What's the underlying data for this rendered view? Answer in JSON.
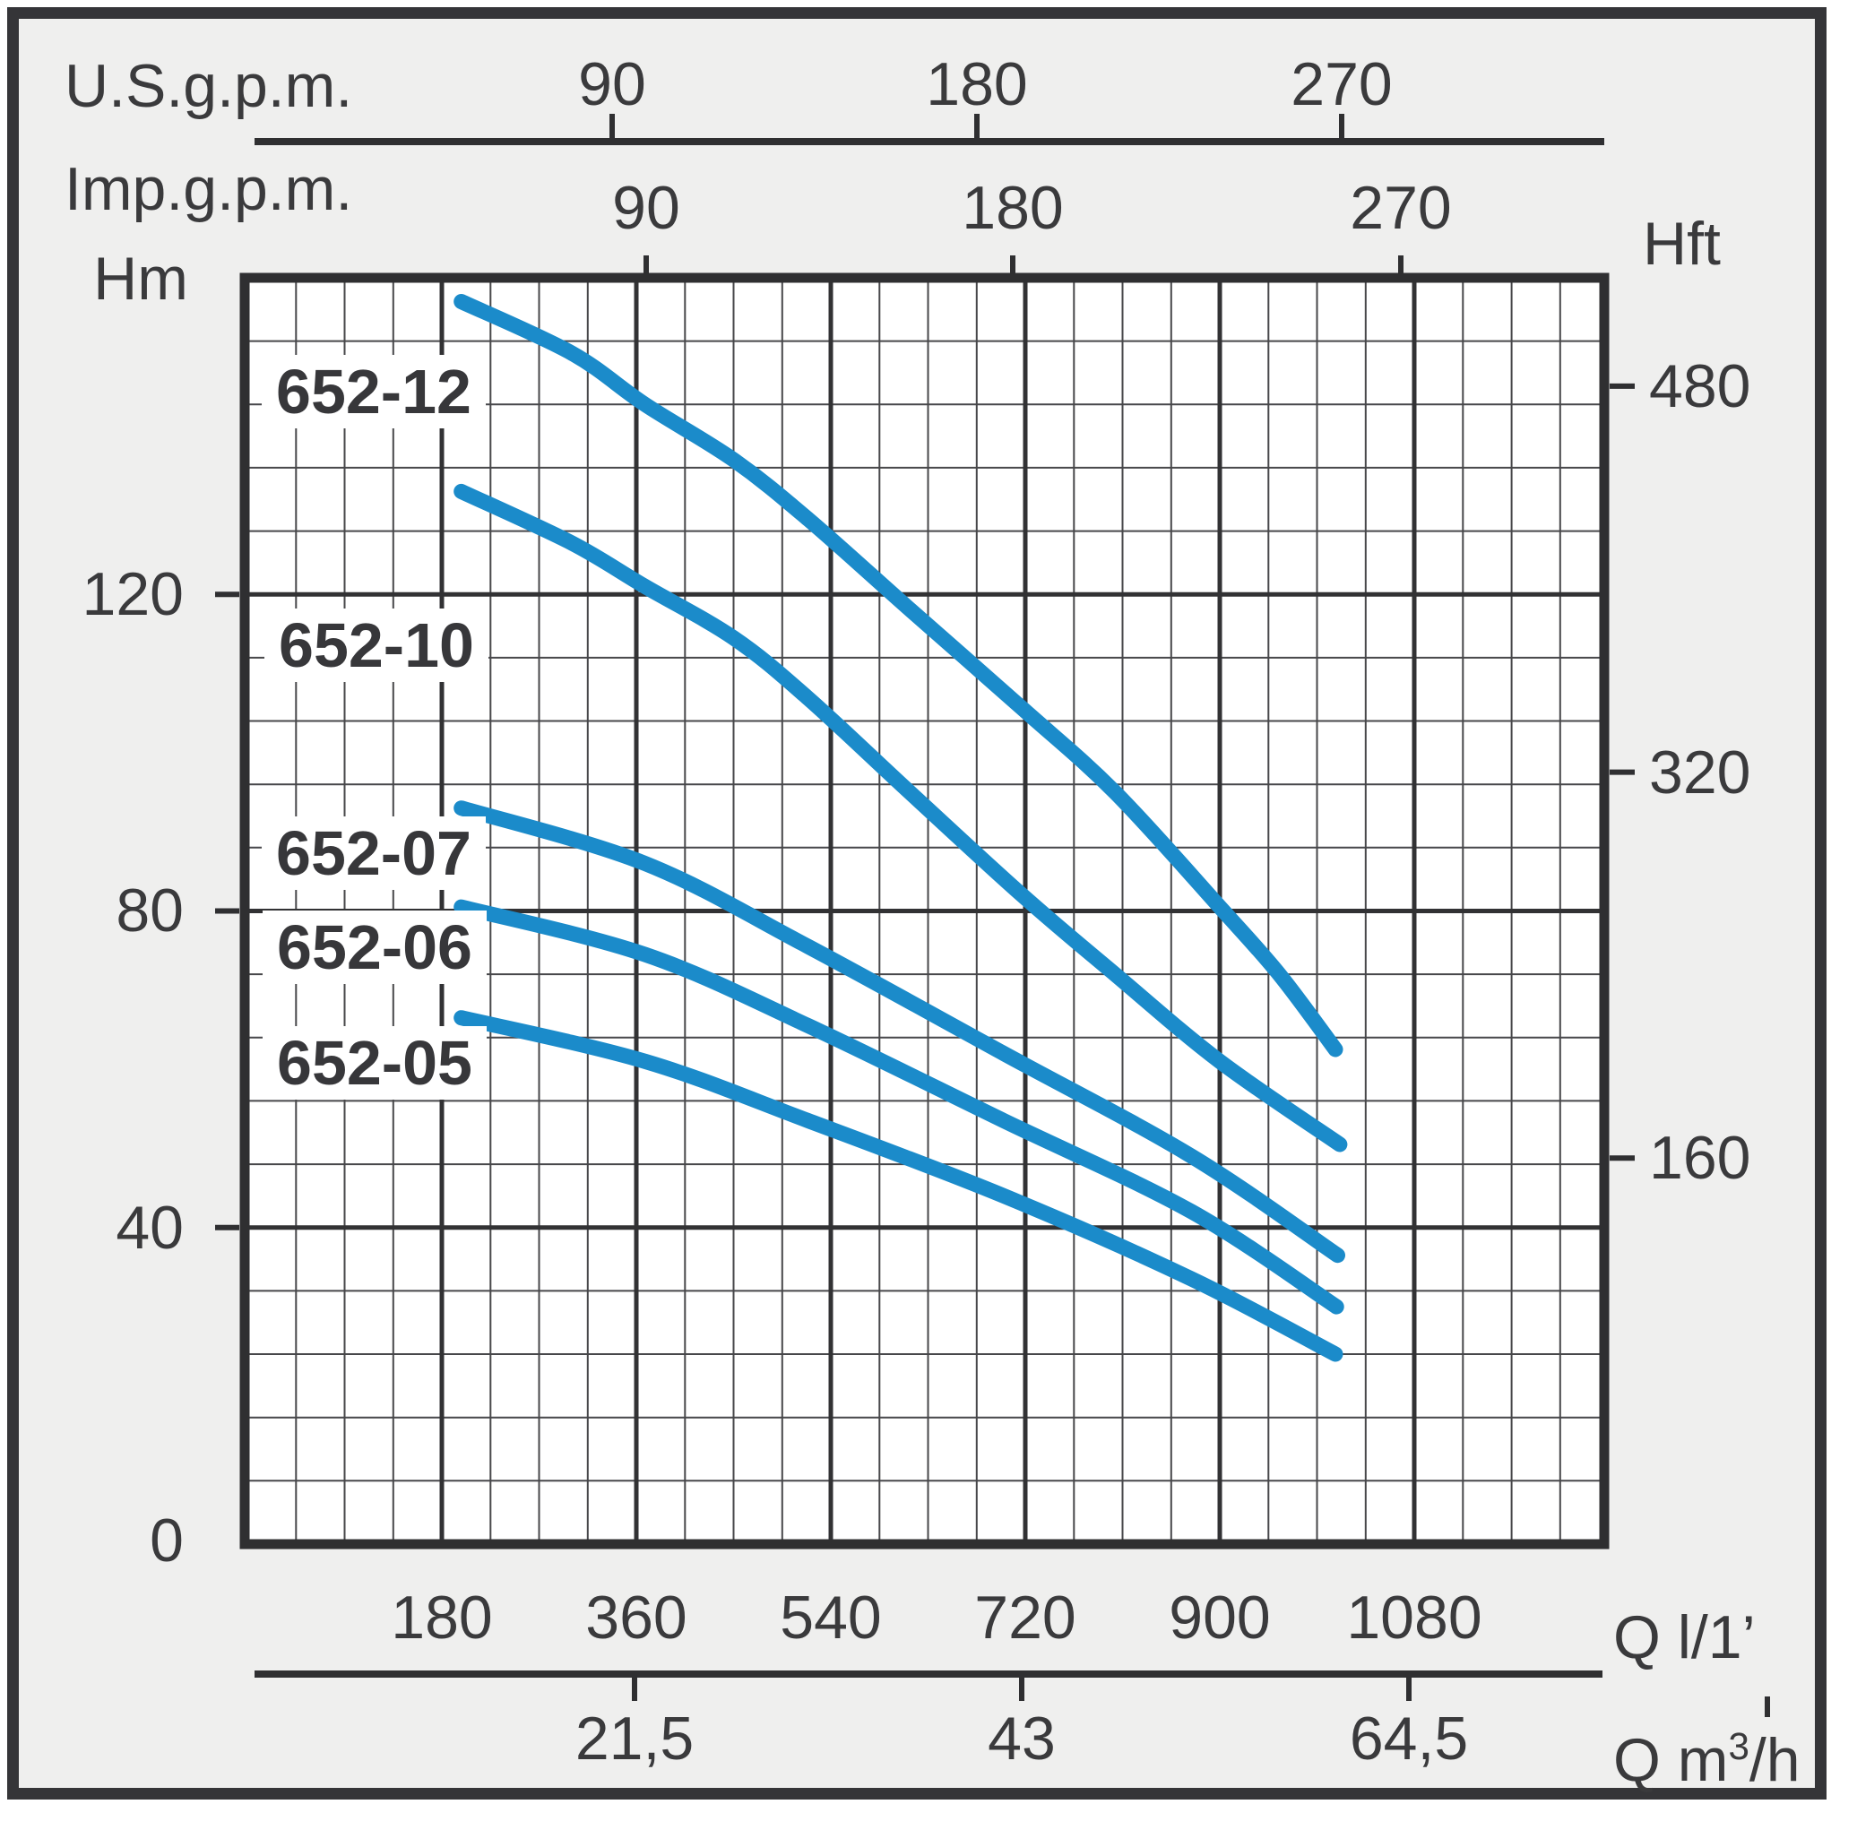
{
  "chart_data": {
    "type": "line",
    "legend_position": "on-curve-labels",
    "grid": {
      "on": true,
      "minor_x_step": 45,
      "minor_y_step": 8,
      "major_x_step": 180,
      "major_y_step": 40
    },
    "xlim": [
      0,
      1255
    ],
    "ylim": [
      0,
      160
    ],
    "xlabel": "Q l/1’",
    "ylabel": "Hm",
    "axes": {
      "left": {
        "label": "Hm",
        "ticks": [
          "0",
          "40",
          "80",
          "120"
        ],
        "values": [
          0,
          40,
          80,
          120
        ]
      },
      "right": {
        "label": "Hft",
        "ticks": [
          "160",
          "320",
          "480"
        ],
        "values": [
          160,
          320,
          480
        ]
      },
      "top_us": {
        "label": "U.S.g.p.m.",
        "ticks": [
          "90",
          "180",
          "270"
        ],
        "values": [
          90,
          180,
          270
        ]
      },
      "top_imp": {
        "label": "Imp.g.p.m.",
        "ticks": [
          "90",
          "180",
          "270"
        ],
        "values": [
          90,
          180,
          270
        ]
      },
      "bottom_flow": {
        "label": "Q l/1’",
        "ticks": [
          "180",
          "360",
          "540",
          "720",
          "900",
          "1080"
        ],
        "values": [
          180,
          360,
          540,
          720,
          900,
          1080
        ]
      },
      "bottom_m3h": {
        "label": "Q m³/h",
        "ticks": [
          "21,5",
          "43",
          "64,5"
        ],
        "values": [
          21.5,
          43,
          64.5
        ]
      }
    },
    "series": [
      {
        "name": "652-12",
        "points": [
          [
            198,
            157
          ],
          [
            300,
            150.5
          ],
          [
            368,
            144
          ],
          [
            450,
            137
          ],
          [
            519,
            129.5
          ],
          [
            614,
            118
          ],
          [
            718,
            105.5
          ],
          [
            803,
            95
          ],
          [
            900,
            80.5
          ],
          [
            955,
            72
          ],
          [
            1007,
            62.5
          ]
        ]
      },
      {
        "name": "652-10",
        "points": [
          [
            198,
            133
          ],
          [
            300,
            126.5
          ],
          [
            368,
            121
          ],
          [
            450,
            114.5
          ],
          [
            518,
            107
          ],
          [
            613,
            95
          ],
          [
            717,
            82
          ],
          [
            803,
            72
          ],
          [
            900,
            61
          ],
          [
            1011,
            50.5
          ]
        ]
      },
      {
        "name": "652-07",
        "points": [
          [
            198,
            93
          ],
          [
            368,
            86
          ],
          [
            519,
            75.5
          ],
          [
            700,
            62
          ],
          [
            874,
            49
          ],
          [
            1009,
            36.5
          ]
        ]
      },
      {
        "name": "652-06",
        "points": [
          [
            198,
            80.5
          ],
          [
            368,
            74.5
          ],
          [
            519,
            65.5
          ],
          [
            700,
            53.5
          ],
          [
            874,
            42
          ],
          [
            1008,
            30
          ]
        ]
      },
      {
        "name": "652-05",
        "points": [
          [
            198,
            66.5
          ],
          [
            368,
            61
          ],
          [
            519,
            53.5
          ],
          [
            700,
            44
          ],
          [
            874,
            33.5
          ],
          [
            1007,
            24
          ]
        ]
      }
    ],
    "colors": {
      "curve": "#1b8bca",
      "axis": "#2f2f31",
      "minor_grid": "#47474a",
      "major_grid": "#323234",
      "plot_bg": "#ffffff",
      "page_bg": "#efefee",
      "text": "#3a3a3c"
    }
  }
}
